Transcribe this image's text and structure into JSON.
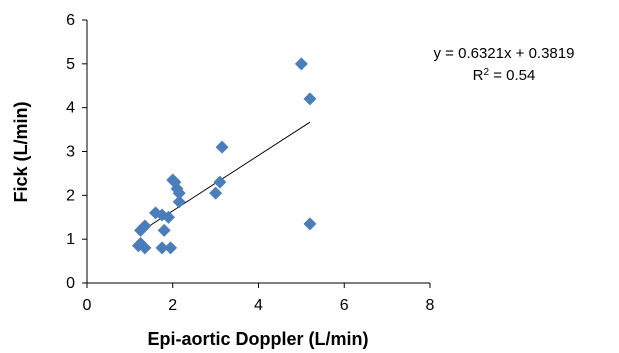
{
  "chart_data": {
    "type": "scatter",
    "title": "",
    "xlabel": "Epi-aortic Doppler (L/min)",
    "ylabel": "Fick (L/min)",
    "xlim": [
      0,
      8
    ],
    "ylim": [
      0,
      6
    ],
    "x_ticks": [
      "0",
      "2",
      "4",
      "6",
      "8"
    ],
    "y_ticks": [
      "0",
      "1",
      "2",
      "3",
      "4",
      "5",
      "6"
    ],
    "grid": false,
    "legend": "none",
    "marker": "diamond",
    "marker_color": "#4a7ebb",
    "series": [
      {
        "points": [
          [
            1.2,
            0.85
          ],
          [
            1.25,
            0.9
          ],
          [
            1.35,
            0.8
          ],
          [
            1.25,
            1.2
          ],
          [
            1.35,
            1.3
          ],
          [
            1.6,
            1.6
          ],
          [
            1.75,
            0.8
          ],
          [
            1.75,
            1.55
          ],
          [
            1.8,
            1.2
          ],
          [
            1.9,
            1.5
          ],
          [
            1.95,
            0.8
          ],
          [
            2.0,
            2.35
          ],
          [
            2.05,
            2.3
          ],
          [
            2.1,
            2.15
          ],
          [
            2.15,
            2.05
          ],
          [
            2.15,
            1.85
          ],
          [
            3.0,
            2.05
          ],
          [
            3.1,
            2.3
          ],
          [
            3.15,
            3.1
          ],
          [
            5.0,
            5.0
          ],
          [
            5.2,
            4.2
          ],
          [
            5.2,
            1.35
          ]
        ]
      }
    ],
    "trendline": {
      "slope": 0.6321,
      "intercept": 0.3819,
      "x_range": [
        1.2,
        5.2
      ],
      "color": "#000000"
    },
    "annotations": {
      "equation": "y = 0.6321x + 0.3819",
      "r2_label": "R",
      "r2_exp": "2",
      "r2_value": " = 0.54"
    }
  }
}
